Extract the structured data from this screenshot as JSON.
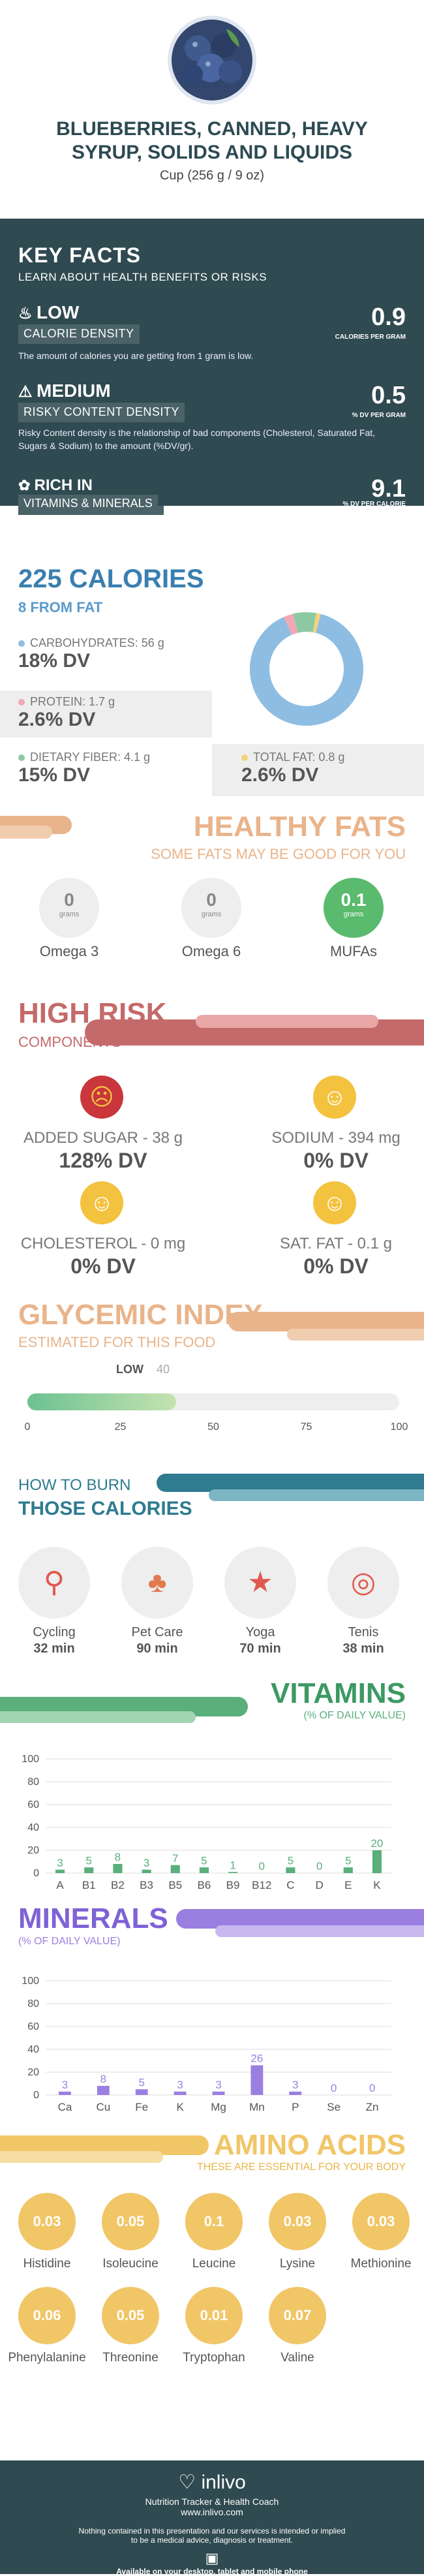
{
  "header": {
    "title_line1": "BLUEBERRIES, CANNED, HEAVY",
    "title_line2": "SYRUP, SOLIDS AND LIQUIDS",
    "serving": "Cup (256 g / 9 oz)"
  },
  "key_facts": {
    "title": "KEY FACTS",
    "subtitle": "LEARN ABOUT HEALTH BENEFITS OR RISKS",
    "calorie_density": {
      "level": "LOW",
      "label": "CALORIE DENSITY",
      "value": "0.9",
      "unit": "CALORIES PER GRAM",
      "desc": "The amount of calories you are getting from 1 gram is low."
    },
    "risky_content": {
      "level": "MEDIUM",
      "label": "RISKY CONTENT DENSITY",
      "value": "0.5",
      "unit": "% DV PER GRAM",
      "desc": "Risky Content density is the relationship of bad components (Cholesterol, Saturated Fat, Sugars & Sodium) to the amount (%DV/gr)."
    },
    "vitamins": {
      "level": "RICH IN",
      "label": "VITAMINS & MINERALS",
      "value": "9.1",
      "unit": "% DV PER CALORIE"
    }
  },
  "calories": {
    "title": "225 CALORIES",
    "subtitle": "8 FROM FAT",
    "carbs": {
      "label": "CARBOHYDRATES: 56 g",
      "dv": "18% DV"
    },
    "protein": {
      "label": "PROTEIN: 1.7 g",
      "dv": "2.6% DV"
    },
    "fiber": {
      "label": "DIETARY FIBER: 4.1 g",
      "dv": "15% DV"
    },
    "fat": {
      "label": "TOTAL FAT: 0.8 g",
      "dv": "2.6% DV"
    },
    "donut": [
      {
        "name": "carbohydrates",
        "value": 56,
        "color": "#8dbde2"
      },
      {
        "name": "protein",
        "value": 1.7,
        "color": "#f2a7b4"
      },
      {
        "name": "fiber",
        "value": 4.1,
        "color": "#8cc9a2"
      },
      {
        "name": "fat",
        "value": 0.8,
        "color": "#f3d37a"
      }
    ]
  },
  "healthy_fats": {
    "title": "HEALTHY FATS",
    "subtitle": "SOME FATS MAY BE GOOD FOR YOU",
    "items": [
      {
        "value": "0",
        "unit": "grams",
        "label": "Omega 3"
      },
      {
        "value": "0",
        "unit": "grams",
        "label": "Omega 6"
      },
      {
        "value": "0.1",
        "unit": "grams",
        "label": "MUFAs"
      }
    ]
  },
  "high_risk": {
    "title": "HIGH RISK",
    "subtitle": "COMPONENTS",
    "items": [
      {
        "label": "ADDED SUGAR - 38 g",
        "dv": "128% DV"
      },
      {
        "label": "SODIUM - 394 mg",
        "dv": "0% DV"
      },
      {
        "label": "CHOLESTEROL - 0 mg",
        "dv": "0% DV"
      },
      {
        "label": "SAT. FAT - 0.1 g",
        "dv": "0% DV"
      }
    ]
  },
  "glycemic": {
    "title": "GLYCEMIC INDEX",
    "subtitle": "ESTIMATED FOR THIS FOOD",
    "level": "LOW",
    "value": 40,
    "value_label": "40",
    "ticks": [
      "0",
      "25",
      "50",
      "75",
      "100"
    ]
  },
  "burn": {
    "title1": "HOW TO BURN",
    "title2": "THOSE CALORIES",
    "items": [
      {
        "name": "Cycling",
        "mins": "32 min"
      },
      {
        "name": "Pet Care",
        "mins": "90 min"
      },
      {
        "name": "Yoga",
        "mins": "70 min"
      },
      {
        "name": "Tenis",
        "mins": "38 min"
      }
    ]
  },
  "vitamins": {
    "title": "VITAMINS",
    "subtitle": "(% OF DAILY VALUE)"
  },
  "minerals": {
    "title": "MINERALS",
    "subtitle": "(% OF DAILY VALUE)"
  },
  "chart_data": [
    {
      "type": "bar",
      "categories": [
        "A",
        "B1",
        "B2",
        "B3",
        "B5",
        "B6",
        "B9",
        "B12",
        "C",
        "D",
        "E",
        "K"
      ],
      "values": [
        3,
        5,
        8,
        3,
        7,
        5,
        1,
        0,
        5,
        0,
        5,
        20
      ],
      "value_labels": [
        "3",
        "5",
        "8",
        "3",
        "7",
        "5",
        "1",
        "0",
        "5",
        "0",
        "5",
        "20"
      ],
      "yticks": [
        "0",
        "20",
        "40",
        "60",
        "80",
        "100"
      ],
      "ylim": [
        0,
        100
      ],
      "color": "#5aaf7b"
    },
    {
      "type": "bar",
      "categories": [
        "Ca",
        "Cu",
        "Fe",
        "K",
        "Mg",
        "Mn",
        "P",
        "Se",
        "Zn"
      ],
      "values": [
        3,
        8,
        5,
        3,
        3,
        26,
        3,
        0,
        0
      ],
      "value_labels": [
        "3",
        "8",
        "5",
        "3",
        "3",
        "26",
        "3",
        "0",
        "0"
      ],
      "yticks": [
        "0",
        "20",
        "40",
        "60",
        "80",
        "100"
      ],
      "ylim": [
        0,
        100
      ],
      "color": "#9b7fe0"
    }
  ],
  "amino": {
    "title": "AMINO ACIDS",
    "subtitle": "THESE ARE ESSENTIAL FOR YOUR BODY",
    "items": [
      {
        "value": "0.03",
        "label": "Histidine"
      },
      {
        "value": "0.05",
        "label": "Isoleucine"
      },
      {
        "value": "0.1",
        "label": "Leucine"
      },
      {
        "value": "0.03",
        "label": "Lysine"
      },
      {
        "value": "0.03",
        "label": "Methionine"
      },
      {
        "value": "0.06",
        "label": "Phenylalanine"
      },
      {
        "value": "0.05",
        "label": "Threonine"
      },
      {
        "value": "0.01",
        "label": "Tryptophan"
      },
      {
        "value": "0.07",
        "label": "Valine"
      }
    ]
  },
  "footer": {
    "brand": "inlivo",
    "tagline": "Nutrition Tracker & Health Coach",
    "url": "www.inlivo.com",
    "disclaimer1": "Nothing contained in this presentation and our services is intended or implied",
    "disclaimer2": "to be a medical advice, diagnosis or treatment.",
    "available": "Available on your desktop, tablet and mobile phone"
  }
}
